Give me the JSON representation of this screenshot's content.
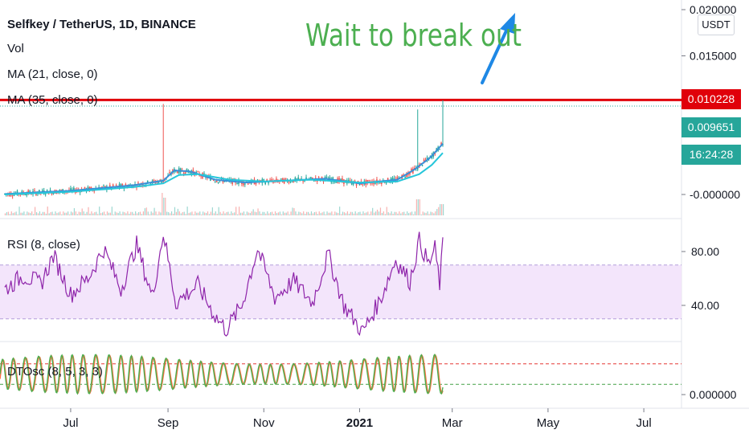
{
  "colors": {
    "up": "#26a69a",
    "down": "#ef5350",
    "ma21": "#3a8fd8",
    "ma35": "#26c6da",
    "rsi": "#8e24aa",
    "rsi_band": "#f3e5fb",
    "dt_fast": "#4caf50",
    "dt_slow": "#ff7043",
    "resistance": "#e0000a",
    "annotation": "#4caf50",
    "arrow": "#1e88e5"
  },
  "legend": {
    "title": "Selfkey / TetherUS, 1D, BINANCE",
    "vol": "Vol",
    "ma21": "MA (21, close, 0)",
    "ma35": "MA (35, close, 0)",
    "rsi": "RSI (8, close)",
    "dtosc": "DTOsc (8, 5, 3, 3)"
  },
  "annotation": {
    "text": "Wait to break out",
    "icon": "arrow-up-right-icon"
  },
  "currency_button": "USDT",
  "price_tags": {
    "resistance": "0.010228",
    "last": "0.009651",
    "countdown": "16:24:28"
  },
  "chart_data": [
    {
      "type": "line",
      "panel": "price",
      "title": "Selfkey / TetherUS, 1D, BINANCE",
      "y_ticks": [
        "0.020000",
        "0.015000",
        "-0.000000"
      ],
      "y_tick_values": [
        0.02,
        0.015,
        0.0
      ],
      "ylim": [
        -0.0018,
        0.0205
      ],
      "x_start": "2021-05-20",
      "x_end": "2021-07-20",
      "series": [
        {
          "name": "MA (21, close, 0)",
          "points": [
            {
              "date": "2020-05-20",
              "v": 5e-05
            },
            {
              "date": "2020-07-01",
              "v": 0.0004
            },
            {
              "date": "2020-08-10",
              "v": 0.001
            },
            {
              "date": "2020-08-29",
              "v": 0.0015
            },
            {
              "date": "2020-09-05",
              "v": 0.0026
            },
            {
              "date": "2020-09-15",
              "v": 0.0025
            },
            {
              "date": "2020-10-01",
              "v": 0.0016
            },
            {
              "date": "2020-10-20",
              "v": 0.0013
            },
            {
              "date": "2020-11-15",
              "v": 0.0015
            },
            {
              "date": "2020-12-10",
              "v": 0.0017
            },
            {
              "date": "2021-01-01",
              "v": 0.0012
            },
            {
              "date": "2021-01-25",
              "v": 0.0016
            },
            {
              "date": "2021-02-05",
              "v": 0.0027
            },
            {
              "date": "2021-02-15",
              "v": 0.004
            },
            {
              "date": "2021-02-23",
              "v": 0.0055
            }
          ]
        },
        {
          "name": "MA (35, close, 0)",
          "points": [
            {
              "date": "2020-05-20",
              "v": 0.0
            },
            {
              "date": "2020-07-01",
              "v": 0.0003
            },
            {
              "date": "2020-08-10",
              "v": 0.0008
            },
            {
              "date": "2020-08-29",
              "v": 0.0012
            },
            {
              "date": "2020-09-08",
              "v": 0.0021
            },
            {
              "date": "2020-09-20",
              "v": 0.0022
            },
            {
              "date": "2020-10-10",
              "v": 0.0016
            },
            {
              "date": "2020-11-01",
              "v": 0.0014
            },
            {
              "date": "2020-12-01",
              "v": 0.0016
            },
            {
              "date": "2021-01-01",
              "v": 0.0013
            },
            {
              "date": "2021-01-25",
              "v": 0.0014
            },
            {
              "date": "2021-02-08",
              "v": 0.0022
            },
            {
              "date": "2021-02-16",
              "v": 0.0032
            },
            {
              "date": "2021-02-23",
              "v": 0.0045
            }
          ]
        }
      ],
      "resistance_level": 0.010228,
      "last_price": 0.009651,
      "spikes": [
        {
          "date": "2020-08-29",
          "high": 0.0098
        },
        {
          "date": "2021-02-07",
          "high": 0.0092
        },
        {
          "date": "2021-02-23",
          "high": 0.0102
        }
      ]
    },
    {
      "type": "line",
      "panel": "rsi",
      "title": "RSI (8, close)",
      "y_ticks": [
        "80.00",
        "40.00"
      ],
      "y_tick_values": [
        80,
        40
      ],
      "band": [
        30,
        70
      ],
      "ylim": [
        12,
        98
      ],
      "series": [
        {
          "name": "RSI (8, close)",
          "points": [
            {
              "date": "2020-05-20",
              "v": 52
            },
            {
              "date": "2020-06-01",
              "v": 62
            },
            {
              "date": "2020-06-12",
              "v": 56
            },
            {
              "date": "2020-06-20",
              "v": 77
            },
            {
              "date": "2020-07-01",
              "v": 48
            },
            {
              "date": "2020-07-12",
              "v": 60
            },
            {
              "date": "2020-07-22",
              "v": 82
            },
            {
              "date": "2020-08-02",
              "v": 52
            },
            {
              "date": "2020-08-12",
              "v": 85
            },
            {
              "date": "2020-08-22",
              "v": 46
            },
            {
              "date": "2020-08-29",
              "v": 94
            },
            {
              "date": "2020-09-06",
              "v": 42
            },
            {
              "date": "2020-09-20",
              "v": 55
            },
            {
              "date": "2020-10-01",
              "v": 32
            },
            {
              "date": "2020-10-08",
              "v": 22
            },
            {
              "date": "2020-10-18",
              "v": 40
            },
            {
              "date": "2020-10-28",
              "v": 82
            },
            {
              "date": "2020-11-08",
              "v": 46
            },
            {
              "date": "2020-11-20",
              "v": 58
            },
            {
              "date": "2020-12-02",
              "v": 42
            },
            {
              "date": "2020-12-12",
              "v": 78
            },
            {
              "date": "2020-12-22",
              "v": 40
            },
            {
              "date": "2021-01-03",
              "v": 20
            },
            {
              "date": "2021-01-14",
              "v": 44
            },
            {
              "date": "2021-01-24",
              "v": 74
            },
            {
              "date": "2021-02-02",
              "v": 58
            },
            {
              "date": "2021-02-08",
              "v": 88
            },
            {
              "date": "2021-02-14",
              "v": 70
            },
            {
              "date": "2021-02-18",
              "v": 82
            },
            {
              "date": "2021-02-21",
              "v": 56
            },
            {
              "date": "2021-02-23",
              "v": 84
            }
          ]
        }
      ]
    },
    {
      "type": "line",
      "panel": "dtosc",
      "title": "DTOsc (8, 5, 3, 3)",
      "y_ticks": [
        "0.000000"
      ],
      "upper_level": 75,
      "lower_level": 25,
      "ylim": [
        -20,
        110
      ],
      "cycles": 38,
      "series": [
        {
          "name": "DTOsc (8, 5, 3, 3)",
          "role": "fast"
        },
        {
          "name": "DTOsc (8, 5, 3, 3)",
          "role": "slow"
        }
      ]
    }
  ],
  "x_axis": {
    "ticks": [
      {
        "label": "Jul",
        "date": "2020-07-01",
        "bold": false
      },
      {
        "label": "Sep",
        "date": "2020-09-01",
        "bold": false
      },
      {
        "label": "Nov",
        "date": "2020-11-01",
        "bold": false
      },
      {
        "label": "2021",
        "date": "2021-01-01",
        "bold": true
      },
      {
        "label": "Mar",
        "date": "2021-03-01",
        "bold": false
      },
      {
        "label": "May",
        "date": "2021-05-01",
        "bold": false
      },
      {
        "label": "Jul",
        "date": "2021-07-01",
        "bold": false
      }
    ]
  }
}
